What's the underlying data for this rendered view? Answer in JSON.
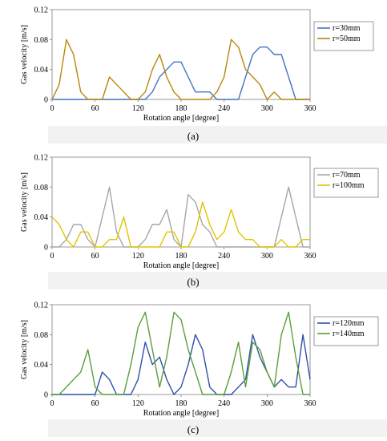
{
  "chart_data": [
    {
      "type": "line",
      "caption": "(a)",
      "xlabel": "Rotation angle [degree]",
      "ylabel": "Gas velocity [m/s]",
      "xlim": [
        0,
        360
      ],
      "ylim": [
        0,
        0.12
      ],
      "xticks": [
        "0",
        "60",
        "120",
        "180",
        "240",
        "300",
        "360"
      ],
      "yticks": [
        "0",
        "0.04",
        "0.08",
        "0.12"
      ],
      "legend_position": "right",
      "series": [
        {
          "name": "r=30mm",
          "color": "#4472C4",
          "x": [
            0,
            130,
            140,
            150,
            160,
            170,
            180,
            190,
            200,
            210,
            220,
            230,
            250,
            260,
            270,
            280,
            290,
            300,
            310,
            320,
            330,
            340,
            360
          ],
          "y": [
            0,
            0,
            0.01,
            0.03,
            0.04,
            0.05,
            0.05,
            0.03,
            0.01,
            0.01,
            0.01,
            0,
            0,
            0,
            0.03,
            0.06,
            0.07,
            0.07,
            0.06,
            0.06,
            0.03,
            0,
            0
          ]
        },
        {
          "name": "r=50mm",
          "color": "#B8860B",
          "x": [
            0,
            10,
            20,
            30,
            40,
            50,
            60,
            70,
            80,
            90,
            100,
            110,
            120,
            130,
            140,
            150,
            160,
            170,
            180,
            190,
            220,
            230,
            240,
            250,
            260,
            270,
            280,
            290,
            300,
            310,
            320,
            330,
            360
          ],
          "y": [
            0,
            0.02,
            0.08,
            0.06,
            0.01,
            0,
            0,
            0,
            0.03,
            0.02,
            0.01,
            0,
            0,
            0.01,
            0.04,
            0.06,
            0.03,
            0.01,
            0,
            0,
            0,
            0.01,
            0.03,
            0.08,
            0.07,
            0.04,
            0.03,
            0.02,
            0,
            0.01,
            0,
            0,
            0
          ]
        }
      ]
    },
    {
      "type": "line",
      "caption": "(b)",
      "xlabel": "Rotation angle [degree]",
      "ylabel": "Gas velocity [m/s]",
      "xlim": [
        0,
        360
      ],
      "ylim": [
        0,
        0.12
      ],
      "xticks": [
        "0",
        "60",
        "120",
        "180",
        "240",
        "300",
        "360"
      ],
      "yticks": [
        "0",
        "0.04",
        "0.08",
        "0.12"
      ],
      "legend_position": "right",
      "series": [
        {
          "name": "r=70mm",
          "color": "#A6A6A6",
          "x": [
            0,
            10,
            20,
            30,
            40,
            50,
            60,
            70,
            80,
            90,
            100,
            110,
            120,
            130,
            140,
            150,
            160,
            170,
            180,
            190,
            200,
            210,
            220,
            230,
            240,
            310,
            320,
            330,
            340,
            350,
            360
          ],
          "y": [
            0,
            0,
            0.01,
            0.03,
            0.03,
            0.01,
            0,
            0.04,
            0.08,
            0.02,
            0,
            0,
            0,
            0.01,
            0.03,
            0.03,
            0.05,
            0.01,
            0,
            0.07,
            0.06,
            0.03,
            0.02,
            0,
            0,
            0,
            0.04,
            0.08,
            0.04,
            0,
            0
          ]
        },
        {
          "name": "r=100mm",
          "color": "#E0C400",
          "x": [
            0,
            10,
            20,
            30,
            40,
            50,
            60,
            70,
            80,
            90,
            100,
            110,
            120,
            130,
            140,
            150,
            160,
            170,
            180,
            190,
            200,
            210,
            220,
            230,
            240,
            250,
            260,
            270,
            280,
            290,
            300,
            310,
            320,
            330,
            340,
            350,
            360
          ],
          "y": [
            0.04,
            0.03,
            0.01,
            0,
            0.02,
            0.02,
            0,
            0,
            0.01,
            0.01,
            0.04,
            0,
            0,
            0,
            0,
            0,
            0.02,
            0.02,
            0,
            0,
            0.02,
            0.06,
            0.03,
            0.01,
            0.02,
            0.05,
            0.02,
            0.01,
            0.01,
            0,
            0,
            0,
            0.01,
            0,
            0,
            0.01,
            0.01
          ]
        }
      ]
    },
    {
      "type": "line",
      "caption": "(c)",
      "xlabel": "Rotation angle [degree]",
      "ylabel": "Gas velocity [m/s]",
      "xlim": [
        0,
        360
      ],
      "ylim": [
        0,
        0.12
      ],
      "xticks": [
        "0",
        "60",
        "120",
        "180",
        "240",
        "300",
        "360"
      ],
      "yticks": [
        "0",
        "0.04",
        "0.08",
        "0.12"
      ],
      "legend_position": "right",
      "series": [
        {
          "name": "r=120mm",
          "color": "#2F4FA8",
          "x": [
            0,
            50,
            60,
            70,
            80,
            90,
            100,
            110,
            120,
            130,
            140,
            150,
            160,
            170,
            180,
            190,
            200,
            210,
            220,
            230,
            240,
            250,
            260,
            270,
            280,
            290,
            300,
            310,
            320,
            330,
            340,
            350,
            360
          ],
          "y": [
            0,
            0,
            0,
            0.03,
            0.02,
            0,
            0,
            0,
            0.02,
            0.07,
            0.04,
            0.05,
            0.02,
            0,
            0.01,
            0.04,
            0.08,
            0.06,
            0.01,
            0,
            0,
            0,
            0.01,
            0.02,
            0.08,
            0.05,
            0.03,
            0.01,
            0.02,
            0.01,
            0.01,
            0.08,
            0.02
          ]
        },
        {
          "name": "r=140mm",
          "color": "#5A9E3A",
          "x": [
            0,
            10,
            20,
            30,
            40,
            50,
            60,
            70,
            80,
            90,
            100,
            110,
            120,
            130,
            140,
            150,
            160,
            170,
            180,
            190,
            200,
            210,
            220,
            230,
            240,
            250,
            260,
            270,
            280,
            290,
            300,
            310,
            320,
            330,
            340,
            350,
            360
          ],
          "y": [
            0,
            0,
            0.01,
            0.02,
            0.03,
            0.06,
            0.01,
            0,
            0,
            0,
            0,
            0.04,
            0.09,
            0.11,
            0.06,
            0.01,
            0.05,
            0.11,
            0.1,
            0.06,
            0.03,
            0,
            0,
            0,
            0,
            0.03,
            0.07,
            0.01,
            0.07,
            0.06,
            0.03,
            0.01,
            0.08,
            0.11,
            0.05,
            0,
            0
          ]
        }
      ]
    }
  ]
}
